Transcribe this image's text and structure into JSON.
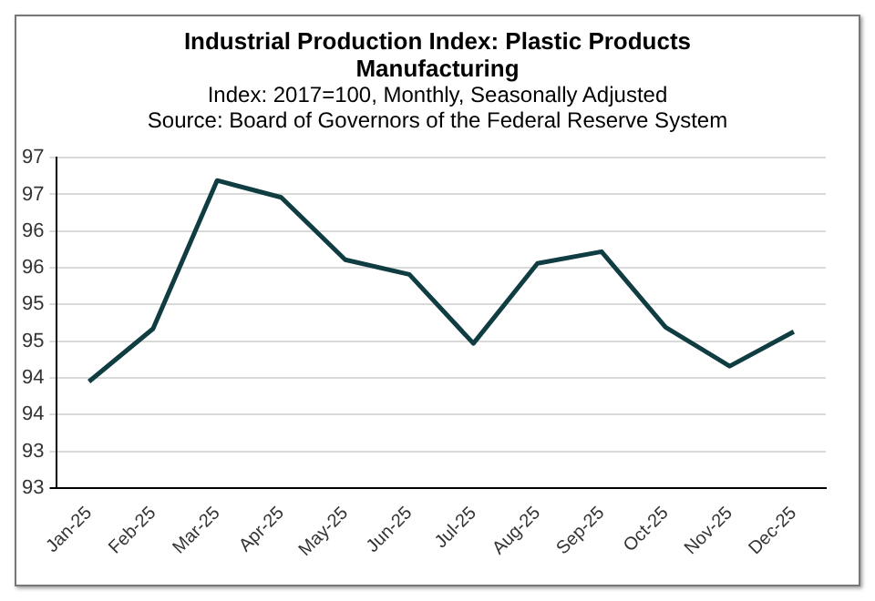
{
  "chart_data": {
    "type": "line",
    "title": "Industrial Production Index: Plastic Products Manufacturing",
    "subtitle": "Index: 2017=100, Monthly, Seasonally Adjusted",
    "annotations": [
      "Source: Board of Governors of the Federal Reserve System"
    ],
    "categories": [
      "Jan-25",
      "Feb-25",
      "Mar-25",
      "Apr-25",
      "May-25",
      "Jun-25",
      "Jul-25",
      "Aug-25",
      "Sep-25",
      "Oct-25",
      "Nov-25",
      "Dec-25"
    ],
    "series": [
      {
        "color": "#0f3d42",
        "values": [
          93.95,
          94.67,
          96.69,
          96.46,
          95.61,
          95.41,
          94.47,
          95.56,
          95.72,
          94.69,
          94.16,
          94.63
        ]
      }
    ],
    "ylim": [
      92.5,
      97
    ],
    "yticks": [
      {
        "value": 92.5,
        "label": "93"
      },
      {
        "value": 93,
        "label": "93"
      },
      {
        "value": 93.5,
        "label": "94"
      },
      {
        "value": 94,
        "label": "94"
      },
      {
        "value": 94.5,
        "label": "95"
      },
      {
        "value": 95,
        "label": "95"
      },
      {
        "value": 95.5,
        "label": "96"
      },
      {
        "value": 96,
        "label": "96"
      },
      {
        "value": 96.5,
        "label": "97"
      },
      {
        "value": 97,
        "label": "97"
      }
    ],
    "grid": "y",
    "marker": "none",
    "line_style": "solid",
    "legend": false
  }
}
